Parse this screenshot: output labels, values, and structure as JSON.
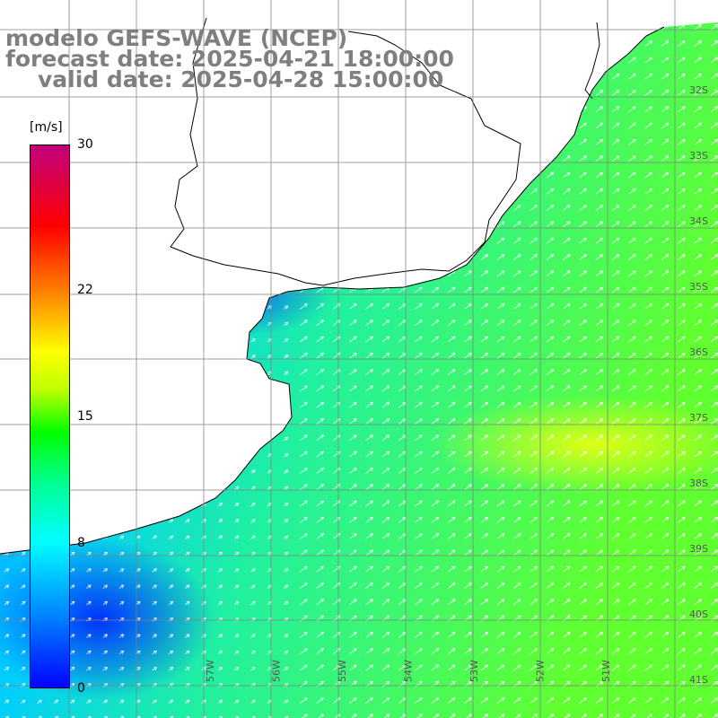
{
  "title": {
    "line1": "modelo GEFS-WAVE (NCEP)",
    "line2": "forecast date: 2025-04-21 18:00:00",
    "line3": "valid date: 2025-04-28 15:00:00"
  },
  "colorbar": {
    "unit": "[m/s]",
    "range": [
      0,
      30
    ],
    "ticks": [
      {
        "value": 30,
        "label": "30"
      },
      {
        "value": 22,
        "label": "22"
      },
      {
        "value": 15,
        "label": "15"
      },
      {
        "value": 8,
        "label": "8"
      },
      {
        "value": 0,
        "label": "0"
      }
    ],
    "stops": [
      "#0000ff",
      "#00a0ff",
      "#00ffff",
      "#00ff80",
      "#00ff00",
      "#ffff00",
      "#ff8000",
      "#ff0000",
      "#c00080"
    ]
  },
  "map": {
    "type": "wind speed field with direction arrows",
    "lat_labels": [
      "32S",
      "33S",
      "34S",
      "35S",
      "36S",
      "37S",
      "38S",
      "39S",
      "40S",
      "41S"
    ],
    "lon_labels": [
      "57W",
      "56W",
      "55W",
      "54W",
      "53W",
      "52W",
      "51W"
    ],
    "ocean_color_low": "#0050ff",
    "ocean_color_mid": "#00e0ff",
    "ocean_color_high": "#40ff40",
    "land_color": "#ffffff",
    "grid_color": "#808080",
    "arrow_color": "#ffffff",
    "wind_direction": "toward northeast"
  }
}
